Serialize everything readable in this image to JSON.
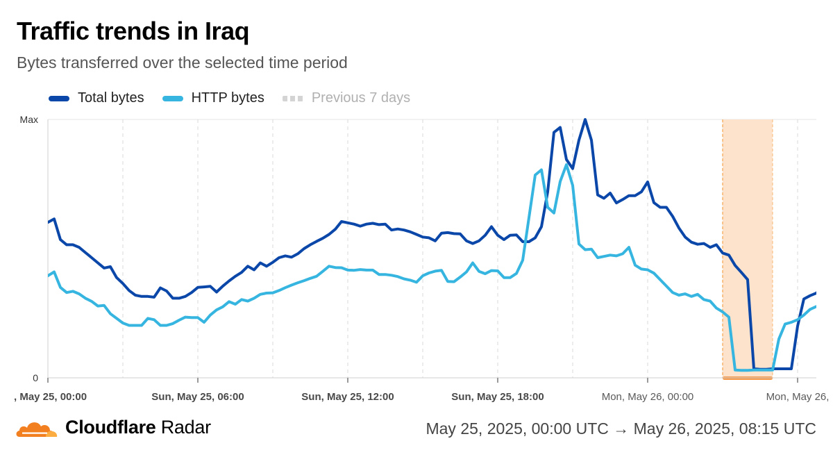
{
  "header": {
    "title": "Traffic trends in Iraq",
    "subtitle": "Bytes transferred over the selected time period"
  },
  "legend": [
    {
      "label": "Total bytes",
      "color": "#0a47a9",
      "style": "solid"
    },
    {
      "label": "HTTP bytes",
      "color": "#35b5df",
      "style": "solid"
    },
    {
      "label": "Previous 7 days",
      "color": "#d4d4d4",
      "style": "dashed"
    }
  ],
  "footer": {
    "brand_bold": "Cloudflare",
    "brand_light": "Radar",
    "range": "May 25, 2025, 00:00 UTC → May 26, 2025, 08:15 UTC"
  },
  "colors": {
    "total": "#0a47a9",
    "http": "#35b5df",
    "grid": "#d9d9d9",
    "outage_fill": "#fde3cc",
    "outage_border": "#f6a44b",
    "outage_bar": "#f49b4e",
    "logo_orange": "#f38020",
    "logo_light": "#fbad41"
  },
  "chart_data": {
    "type": "line",
    "y_tick_labels": [
      "Max",
      "0"
    ],
    "ylim": [
      0,
      100
    ],
    "x_tick_labels": [
      {
        "label": ", May 25, 00:00",
        "hour": 0,
        "bold": true
      },
      {
        "label": "Sun, May 25, 06:00",
        "hour": 6,
        "bold": true
      },
      {
        "label": "Sun, May 25, 12:00",
        "hour": 12,
        "bold": true
      },
      {
        "label": "Sun, May 25, 18:00",
        "hour": 18,
        "bold": true
      },
      {
        "label": "Mon, May 26, 00:00",
        "hour": 24,
        "bold": false
      },
      {
        "label": "Mon, May 26,",
        "hour": 30,
        "bold": false
      }
    ],
    "grid_hours": [
      3,
      6,
      9,
      12,
      15,
      18,
      21,
      24,
      27,
      30
    ],
    "x_range_hours": [
      0,
      32.25
    ],
    "highlight": {
      "from_hour": 27.0,
      "to_hour": 29.0,
      "note": "outage"
    },
    "series": [
      {
        "name": "Total bytes",
        "points": [
          [
            0.0,
            60.2
          ],
          [
            0.25,
            61.5
          ],
          [
            0.5,
            53.5
          ],
          [
            0.75,
            51.5
          ],
          [
            1.0,
            51.5
          ],
          [
            1.25,
            50.5
          ],
          [
            1.5,
            48.5
          ],
          [
            1.75,
            46.5
          ],
          [
            2.0,
            44.5
          ],
          [
            2.25,
            42.5
          ],
          [
            2.5,
            43.0
          ],
          [
            2.75,
            38.8
          ],
          [
            3.0,
            36.5
          ],
          [
            3.25,
            33.8
          ],
          [
            3.5,
            32.0
          ],
          [
            3.75,
            31.5
          ],
          [
            4.0,
            31.5
          ],
          [
            4.25,
            31.2
          ],
          [
            4.5,
            34.8
          ],
          [
            4.75,
            33.6
          ],
          [
            5.0,
            30.8
          ],
          [
            5.25,
            30.8
          ],
          [
            5.5,
            31.5
          ],
          [
            5.75,
            33.0
          ],
          [
            6.0,
            35.0
          ],
          [
            6.25,
            35.2
          ],
          [
            6.5,
            35.4
          ],
          [
            6.75,
            33.2
          ],
          [
            7.0,
            35.5
          ],
          [
            7.25,
            37.5
          ],
          [
            7.5,
            39.3
          ],
          [
            7.75,
            40.8
          ],
          [
            8.0,
            43.2
          ],
          [
            8.25,
            41.8
          ],
          [
            8.5,
            44.5
          ],
          [
            8.75,
            43.2
          ],
          [
            9.0,
            44.7
          ],
          [
            9.25,
            46.5
          ],
          [
            9.5,
            47.2
          ],
          [
            9.75,
            46.7
          ],
          [
            10.0,
            48.0
          ],
          [
            10.25,
            50.0
          ],
          [
            10.5,
            51.5
          ],
          [
            10.75,
            52.8
          ],
          [
            11.0,
            54.0
          ],
          [
            11.25,
            55.5
          ],
          [
            11.5,
            57.5
          ],
          [
            11.75,
            60.5
          ],
          [
            12.0,
            60.0
          ],
          [
            12.25,
            59.5
          ],
          [
            12.5,
            58.7
          ],
          [
            12.75,
            59.5
          ],
          [
            13.0,
            59.8
          ],
          [
            13.25,
            59.3
          ],
          [
            13.5,
            59.5
          ],
          [
            13.75,
            57.2
          ],
          [
            14.0,
            57.6
          ],
          [
            14.25,
            57.2
          ],
          [
            14.5,
            56.5
          ],
          [
            14.75,
            55.5
          ],
          [
            15.0,
            54.5
          ],
          [
            15.25,
            54.2
          ],
          [
            15.5,
            53.0
          ],
          [
            15.75,
            56.0
          ],
          [
            16.0,
            56.2
          ],
          [
            16.25,
            55.8
          ],
          [
            16.5,
            55.7
          ],
          [
            16.75,
            53.0
          ],
          [
            17.0,
            52.0
          ],
          [
            17.25,
            53.0
          ],
          [
            17.5,
            55.2
          ],
          [
            17.75,
            58.5
          ],
          [
            18.0,
            55.2
          ],
          [
            18.25,
            53.5
          ],
          [
            18.5,
            55.2
          ],
          [
            18.75,
            55.3
          ],
          [
            19.0,
            52.7
          ],
          [
            19.25,
            52.7
          ],
          [
            19.5,
            54.2
          ],
          [
            19.75,
            58.5
          ],
          [
            20.0,
            72.0
          ],
          [
            20.25,
            95.0
          ],
          [
            20.5,
            96.9
          ],
          [
            20.75,
            84.5
          ],
          [
            21.0,
            81.0
          ],
          [
            21.25,
            92.0
          ],
          [
            21.5,
            100.0
          ],
          [
            21.75,
            92.0
          ],
          [
            22.0,
            70.8
          ],
          [
            22.25,
            69.5
          ],
          [
            22.5,
            71.5
          ],
          [
            22.75,
            67.7
          ],
          [
            23.0,
            69.0
          ],
          [
            23.25,
            70.5
          ],
          [
            23.5,
            70.5
          ],
          [
            23.75,
            72.0
          ],
          [
            24.0,
            75.8
          ],
          [
            24.25,
            67.8
          ],
          [
            24.5,
            66.0
          ],
          [
            24.75,
            66.0
          ],
          [
            25.0,
            62.5
          ],
          [
            25.25,
            58.0
          ],
          [
            25.5,
            54.5
          ],
          [
            25.75,
            52.5
          ],
          [
            26.0,
            51.7
          ],
          [
            26.25,
            52.0
          ],
          [
            26.5,
            50.5
          ],
          [
            26.75,
            51.5
          ],
          [
            27.0,
            48.3
          ],
          [
            27.25,
            47.5
          ],
          [
            27.5,
            43.5
          ],
          [
            27.75,
            40.8
          ],
          [
            28.0,
            38.0
          ],
          [
            28.25,
            3.5
          ],
          [
            28.5,
            3.3
          ],
          [
            28.75,
            3.3
          ],
          [
            29.0,
            3.5
          ],
          [
            29.25,
            3.5
          ],
          [
            29.5,
            3.5
          ],
          [
            29.75,
            3.5
          ],
          [
            30.0,
            20.0
          ],
          [
            30.25,
            30.5
          ],
          [
            30.5,
            31.8
          ],
          [
            30.75,
            32.8
          ],
          [
            31.0,
            35.0
          ],
          [
            31.25,
            36.5
          ],
          [
            31.5,
            37.0
          ],
          [
            31.75,
            37.2
          ]
        ]
      },
      {
        "name": "HTTP bytes",
        "points": [
          [
            0.0,
            39.5
          ],
          [
            0.25,
            41.0
          ],
          [
            0.5,
            35.0
          ],
          [
            0.75,
            33.0
          ],
          [
            1.0,
            33.5
          ],
          [
            1.25,
            32.5
          ],
          [
            1.5,
            30.8
          ],
          [
            1.75,
            29.6
          ],
          [
            2.0,
            27.8
          ],
          [
            2.25,
            28.0
          ],
          [
            2.5,
            24.8
          ],
          [
            2.75,
            23.0
          ],
          [
            3.0,
            21.2
          ],
          [
            3.25,
            20.3
          ],
          [
            3.5,
            20.3
          ],
          [
            3.75,
            20.3
          ],
          [
            4.0,
            23.0
          ],
          [
            4.25,
            22.5
          ],
          [
            4.5,
            20.3
          ],
          [
            4.75,
            20.3
          ],
          [
            5.0,
            21.0
          ],
          [
            5.25,
            22.3
          ],
          [
            5.5,
            23.5
          ],
          [
            5.75,
            23.3
          ],
          [
            6.0,
            23.3
          ],
          [
            6.25,
            21.5
          ],
          [
            6.5,
            24.3
          ],
          [
            6.75,
            26.3
          ],
          [
            7.0,
            27.5
          ],
          [
            7.25,
            29.5
          ],
          [
            7.5,
            28.5
          ],
          [
            7.75,
            30.3
          ],
          [
            8.0,
            29.7
          ],
          [
            8.25,
            30.8
          ],
          [
            8.5,
            32.3
          ],
          [
            8.75,
            32.8
          ],
          [
            9.0,
            32.9
          ],
          [
            9.25,
            33.8
          ],
          [
            9.5,
            34.9
          ],
          [
            9.75,
            35.9
          ],
          [
            10.0,
            36.8
          ],
          [
            10.25,
            37.6
          ],
          [
            10.5,
            38.5
          ],
          [
            10.75,
            39.3
          ],
          [
            11.0,
            41.2
          ],
          [
            11.25,
            43.2
          ],
          [
            11.5,
            42.7
          ],
          [
            11.75,
            42.6
          ],
          [
            12.0,
            41.7
          ],
          [
            12.25,
            41.6
          ],
          [
            12.5,
            41.9
          ],
          [
            12.75,
            41.7
          ],
          [
            13.0,
            41.7
          ],
          [
            13.25,
            40.0
          ],
          [
            13.5,
            40.0
          ],
          [
            13.75,
            39.7
          ],
          [
            14.0,
            39.2
          ],
          [
            14.25,
            38.3
          ],
          [
            14.5,
            37.8
          ],
          [
            14.75,
            37.0
          ],
          [
            15.0,
            39.5
          ],
          [
            15.25,
            40.6
          ],
          [
            15.5,
            41.3
          ],
          [
            15.75,
            41.6
          ],
          [
            16.0,
            37.3
          ],
          [
            16.25,
            37.2
          ],
          [
            16.5,
            39.0
          ],
          [
            16.75,
            41.0
          ],
          [
            17.0,
            44.5
          ],
          [
            17.25,
            41.2
          ],
          [
            17.5,
            40.3
          ],
          [
            17.75,
            41.5
          ],
          [
            18.0,
            41.4
          ],
          [
            18.25,
            38.8
          ],
          [
            18.5,
            38.8
          ],
          [
            18.75,
            40.4
          ],
          [
            19.0,
            45.5
          ],
          [
            19.25,
            62.0
          ],
          [
            19.5,
            78.5
          ],
          [
            19.75,
            80.5
          ],
          [
            20.0,
            66.0
          ],
          [
            20.25,
            63.8
          ],
          [
            20.5,
            76.0
          ],
          [
            20.75,
            82.5
          ],
          [
            21.0,
            74.5
          ],
          [
            21.25,
            51.8
          ],
          [
            21.5,
            49.6
          ],
          [
            21.75,
            49.8
          ],
          [
            22.0,
            46.5
          ],
          [
            22.25,
            47.0
          ],
          [
            22.5,
            47.5
          ],
          [
            22.75,
            47.2
          ],
          [
            23.0,
            48.0
          ],
          [
            23.25,
            50.5
          ],
          [
            23.5,
            43.6
          ],
          [
            23.75,
            42.1
          ],
          [
            24.0,
            41.8
          ],
          [
            24.25,
            40.5
          ],
          [
            24.5,
            38.0
          ],
          [
            24.75,
            35.5
          ],
          [
            25.0,
            33.0
          ],
          [
            25.25,
            32.0
          ],
          [
            25.5,
            32.5
          ],
          [
            25.75,
            31.5
          ],
          [
            26.0,
            32.3
          ],
          [
            26.25,
            30.3
          ],
          [
            26.5,
            29.7
          ],
          [
            26.75,
            27.0
          ],
          [
            27.0,
            25.5
          ],
          [
            27.25,
            23.5
          ],
          [
            27.5,
            3.0
          ],
          [
            27.75,
            2.9
          ],
          [
            28.0,
            2.9
          ],
          [
            28.25,
            3.0
          ],
          [
            28.5,
            3.0
          ],
          [
            28.75,
            3.0
          ],
          [
            29.0,
            3.0
          ],
          [
            29.25,
            15.0
          ],
          [
            29.5,
            20.8
          ],
          [
            29.75,
            21.5
          ],
          [
            30.0,
            22.5
          ],
          [
            30.25,
            24.3
          ],
          [
            30.5,
            26.5
          ],
          [
            30.75,
            27.6
          ],
          [
            31.0,
            28.0
          ]
        ]
      }
    ]
  }
}
